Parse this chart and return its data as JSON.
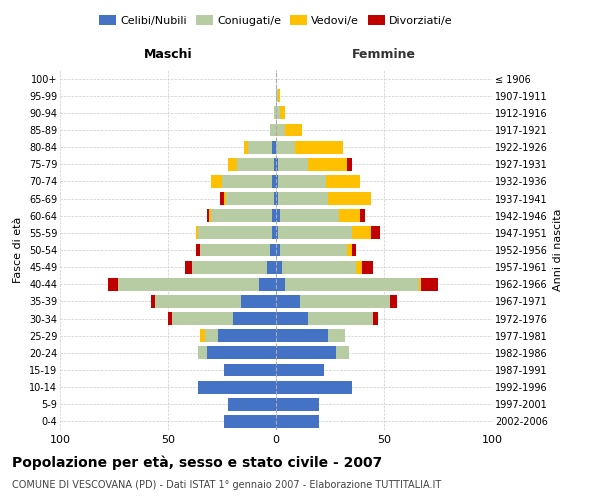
{
  "age_groups": [
    "0-4",
    "5-9",
    "10-14",
    "15-19",
    "20-24",
    "25-29",
    "30-34",
    "35-39",
    "40-44",
    "45-49",
    "50-54",
    "55-59",
    "60-64",
    "65-69",
    "70-74",
    "75-79",
    "80-84",
    "85-89",
    "90-94",
    "95-99",
    "100+"
  ],
  "birth_years": [
    "2002-2006",
    "1997-2001",
    "1992-1996",
    "1987-1991",
    "1982-1986",
    "1977-1981",
    "1972-1976",
    "1967-1971",
    "1962-1966",
    "1957-1961",
    "1952-1956",
    "1947-1951",
    "1942-1946",
    "1937-1941",
    "1932-1936",
    "1927-1931",
    "1922-1926",
    "1917-1921",
    "1912-1916",
    "1907-1911",
    "≤ 1906"
  ],
  "male": {
    "celibi": [
      24,
      22,
      36,
      24,
      32,
      27,
      20,
      16,
      8,
      4,
      3,
      2,
      2,
      1,
      2,
      1,
      2,
      0,
      0,
      0,
      0
    ],
    "coniugati": [
      0,
      0,
      0,
      0,
      4,
      6,
      28,
      40,
      65,
      35,
      32,
      34,
      28,
      22,
      23,
      17,
      11,
      3,
      1,
      0,
      0
    ],
    "vedovi": [
      0,
      0,
      0,
      0,
      0,
      2,
      0,
      0,
      0,
      0,
      0,
      1,
      1,
      1,
      5,
      4,
      2,
      0,
      0,
      0,
      0
    ],
    "divorziati": [
      0,
      0,
      0,
      0,
      0,
      0,
      2,
      2,
      5,
      3,
      2,
      0,
      1,
      2,
      0,
      0,
      0,
      0,
      0,
      0,
      0
    ]
  },
  "female": {
    "nubili": [
      20,
      20,
      35,
      22,
      28,
      24,
      15,
      11,
      4,
      3,
      2,
      1,
      2,
      1,
      1,
      1,
      0,
      0,
      0,
      0,
      0
    ],
    "coniugate": [
      0,
      0,
      0,
      0,
      6,
      8,
      30,
      42,
      62,
      34,
      31,
      34,
      27,
      23,
      22,
      14,
      9,
      4,
      2,
      1,
      0
    ],
    "vedove": [
      0,
      0,
      0,
      0,
      0,
      0,
      0,
      0,
      1,
      3,
      2,
      9,
      10,
      20,
      16,
      18,
      22,
      8,
      2,
      1,
      0
    ],
    "divorziate": [
      0,
      0,
      0,
      0,
      0,
      0,
      2,
      3,
      8,
      5,
      2,
      4,
      2,
      0,
      0,
      2,
      0,
      0,
      0,
      0,
      0
    ]
  },
  "colors": {
    "celibi": "#4472c4",
    "coniugati": "#b8cca4",
    "vedovi": "#ffc000",
    "divorziati": "#c00000"
  },
  "xlim": 100,
  "title": "Popolazione per età, sesso e stato civile - 2007",
  "subtitle": "COMUNE DI VESCOVANA (PD) - Dati ISTAT 1° gennaio 2007 - Elaborazione TUTTITALIA.IT",
  "xlabel_left": "Maschi",
  "xlabel_right": "Femmine",
  "ylabel_left": "Fasce di età",
  "ylabel_right": "Anni di nascita",
  "bg_color": "#ffffff",
  "grid_color": "#cccccc"
}
